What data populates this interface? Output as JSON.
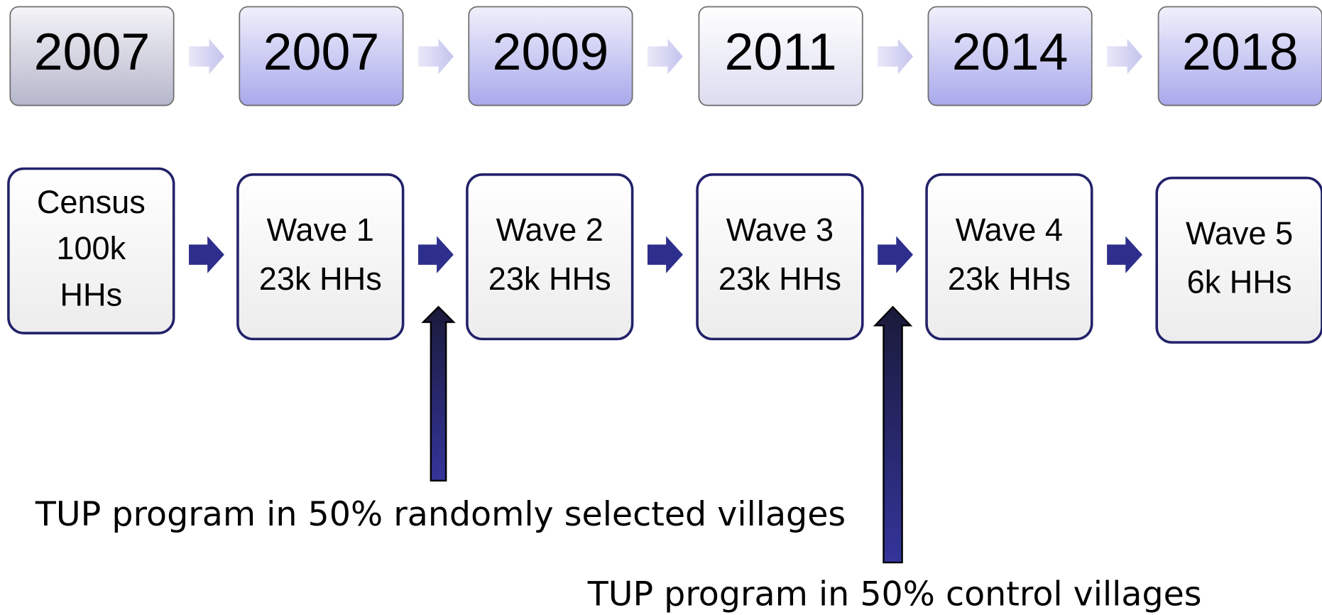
{
  "years": [
    "2007",
    "2007",
    "2009",
    "2011",
    "2014",
    "2018"
  ],
  "stages": [
    {
      "lines": [
        "Census",
        "100k",
        "HHs"
      ]
    },
    {
      "lines": [
        "Wave 1",
        "23k HHs"
      ]
    },
    {
      "lines": [
        "Wave 2",
        "23k HHs"
      ]
    },
    {
      "lines": [
        "Wave 3",
        "23k HHs"
      ]
    },
    {
      "lines": [
        "Wave 4",
        "23k HHs"
      ]
    },
    {
      "lines": [
        "Wave 5",
        "6k HHs"
      ]
    }
  ],
  "annotations": [
    "TUP program in 50% randomly selected villages",
    "TUP program in 50% control villages"
  ]
}
